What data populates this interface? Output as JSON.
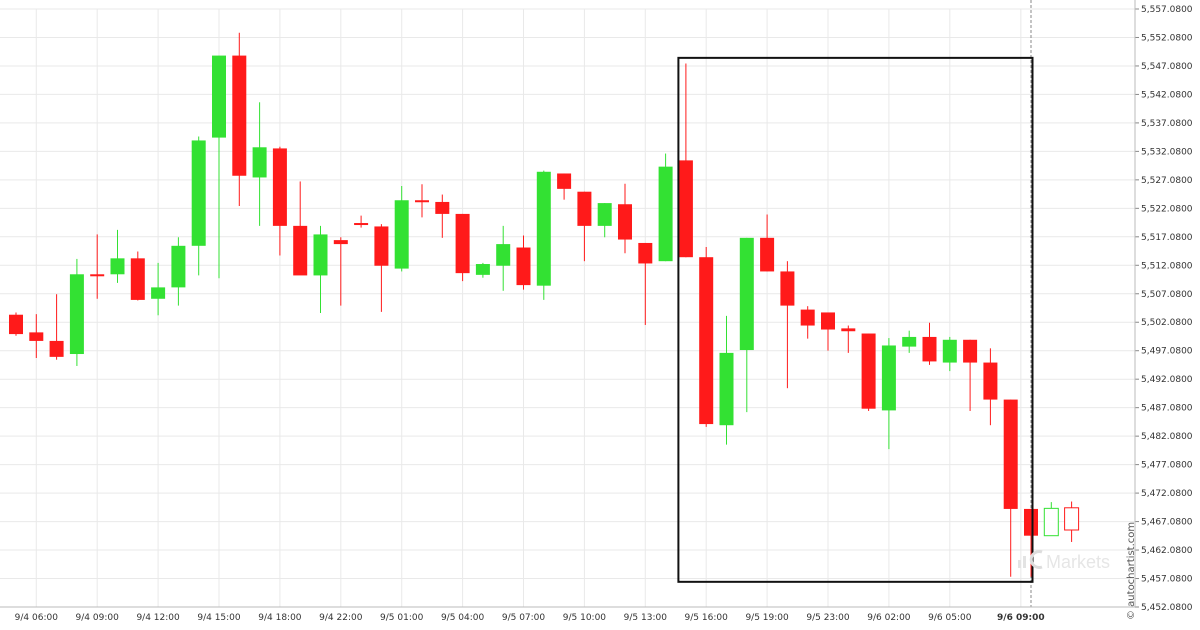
{
  "chart_data": {
    "type": "candlestick",
    "ylim": [
      5452.08,
      5557.08
    ],
    "ytick_step": 5,
    "ytick_format": "thousands_comma_4dp",
    "grid": true,
    "highlight_box": {
      "from_index": 33,
      "to_index": 50,
      "y_range": [
        5456.5,
        5548.5
      ]
    },
    "current_time_marker_index": 50,
    "x_ticks": [
      {
        "label": "9/4 06:00",
        "index": 1,
        "bold": false
      },
      {
        "label": "9/4 09:00",
        "index": 4,
        "bold": false
      },
      {
        "label": "9/4 12:00",
        "index": 7,
        "bold": false
      },
      {
        "label": "9/4 15:00",
        "index": 10,
        "bold": false
      },
      {
        "label": "9/4 18:00",
        "index": 13,
        "bold": false
      },
      {
        "label": "9/4 22:00",
        "index": 16,
        "bold": false
      },
      {
        "label": "9/5 01:00",
        "index": 19,
        "bold": false
      },
      {
        "label": "9/5 04:00",
        "index": 22,
        "bold": false
      },
      {
        "label": "9/5 07:00",
        "index": 25,
        "bold": false
      },
      {
        "label": "9/5 10:00",
        "index": 28,
        "bold": false
      },
      {
        "label": "9/5 13:00",
        "index": 31,
        "bold": false
      },
      {
        "label": "9/5 16:00",
        "index": 34,
        "bold": false
      },
      {
        "label": "9/5 19:00",
        "index": 37,
        "bold": false
      },
      {
        "label": "9/5 23:00",
        "index": 40,
        "bold": false
      },
      {
        "label": "9/6 02:00",
        "index": 43,
        "bold": false
      },
      {
        "label": "9/6 05:00",
        "index": 46,
        "bold": false
      },
      {
        "label": "9/6 09:00",
        "index": 49.5,
        "bold": true
      }
    ],
    "candles": [
      {
        "o": 5503.4,
        "h": 5503.8,
        "l": 5499.7,
        "c": 5500.0,
        "state": "bear"
      },
      {
        "o": 5500.3,
        "h": 5503.5,
        "l": 5495.8,
        "c": 5498.8,
        "state": "bear"
      },
      {
        "o": 5498.8,
        "h": 5507.0,
        "l": 5495.5,
        "c": 5496.0,
        "state": "bear"
      },
      {
        "o": 5496.5,
        "h": 5513.2,
        "l": 5494.4,
        "c": 5510.5,
        "state": "bull"
      },
      {
        "o": 5510.5,
        "h": 5517.5,
        "l": 5506.2,
        "c": 5510.5,
        "state": "bear"
      },
      {
        "o": 5510.5,
        "h": 5518.3,
        "l": 5509.0,
        "c": 5513.3,
        "state": "bull"
      },
      {
        "o": 5513.3,
        "h": 5514.5,
        "l": 5505.9,
        "c": 5506.0,
        "state": "bear"
      },
      {
        "o": 5506.2,
        "h": 5512.5,
        "l": 5503.3,
        "c": 5508.2,
        "state": "bull"
      },
      {
        "o": 5508.2,
        "h": 5517.0,
        "l": 5505.0,
        "c": 5515.5,
        "state": "bull"
      },
      {
        "o": 5515.5,
        "h": 5534.7,
        "l": 5510.3,
        "c": 5534.0,
        "state": "bull"
      },
      {
        "o": 5534.5,
        "h": 5548.9,
        "l": 5509.8,
        "c": 5548.9,
        "state": "bull"
      },
      {
        "o": 5548.9,
        "h": 5552.9,
        "l": 5522.5,
        "c": 5527.8,
        "state": "bear"
      },
      {
        "o": 5527.5,
        "h": 5540.7,
        "l": 5519.0,
        "c": 5532.8,
        "state": "bull"
      },
      {
        "o": 5532.6,
        "h": 5532.9,
        "l": 5513.8,
        "c": 5519.0,
        "state": "bear"
      },
      {
        "o": 5519.0,
        "h": 5526.8,
        "l": 5510.5,
        "c": 5510.3,
        "state": "bear"
      },
      {
        "o": 5510.3,
        "h": 5519.0,
        "l": 5503.7,
        "c": 5517.5,
        "state": "bull"
      },
      {
        "o": 5516.5,
        "h": 5517.0,
        "l": 5505.0,
        "c": 5515.8,
        "state": "bear"
      },
      {
        "o": 5519.5,
        "h": 5520.8,
        "l": 5518.7,
        "c": 5519.5,
        "state": "bear"
      },
      {
        "o": 5518.9,
        "h": 5519.3,
        "l": 5503.9,
        "c": 5512.0,
        "state": "bear"
      },
      {
        "o": 5511.5,
        "h": 5526.0,
        "l": 5511.0,
        "c": 5523.5,
        "state": "bull"
      },
      {
        "o": 5523.5,
        "h": 5526.3,
        "l": 5520.5,
        "c": 5523.5,
        "state": "bear"
      },
      {
        "o": 5523.2,
        "h": 5524.5,
        "l": 5516.9,
        "c": 5521.1,
        "state": "bear"
      },
      {
        "o": 5521.1,
        "h": 5521.1,
        "l": 5509.3,
        "c": 5510.7,
        "state": "bear"
      },
      {
        "o": 5510.4,
        "h": 5512.5,
        "l": 5509.9,
        "c": 5512.3,
        "state": "bull"
      },
      {
        "o": 5512.0,
        "h": 5519.0,
        "l": 5507.6,
        "c": 5515.8,
        "state": "bull"
      },
      {
        "o": 5515.2,
        "h": 5517.3,
        "l": 5507.8,
        "c": 5508.6,
        "state": "bear"
      },
      {
        "o": 5508.5,
        "h": 5528.7,
        "l": 5506.0,
        "c": 5528.5,
        "state": "bull"
      },
      {
        "o": 5528.2,
        "h": 5528.2,
        "l": 5523.6,
        "c": 5525.5,
        "state": "bear"
      },
      {
        "o": 5525.0,
        "h": 5525.0,
        "l": 5512.8,
        "c": 5519.0,
        "state": "bear"
      },
      {
        "o": 5519.0,
        "h": 5523.0,
        "l": 5517.0,
        "c": 5523.0,
        "state": "bull"
      },
      {
        "o": 5522.8,
        "h": 5526.4,
        "l": 5514.2,
        "c": 5516.6,
        "state": "bear"
      },
      {
        "o": 5516.0,
        "h": 5516.0,
        "l": 5501.6,
        "c": 5512.4,
        "state": "bear"
      },
      {
        "o": 5512.8,
        "h": 5531.7,
        "l": 5512.8,
        "c": 5529.4,
        "state": "bull"
      },
      {
        "o": 5530.5,
        "h": 5547.5,
        "l": 5513.5,
        "c": 5513.5,
        "state": "bear"
      },
      {
        "o": 5513.5,
        "h": 5515.3,
        "l": 5483.7,
        "c": 5484.2,
        "state": "bear"
      },
      {
        "o": 5484.0,
        "h": 5503.2,
        "l": 5480.6,
        "c": 5496.7,
        "state": "bull"
      },
      {
        "o": 5497.2,
        "h": 5516.9,
        "l": 5486.3,
        "c": 5516.9,
        "state": "bull"
      },
      {
        "o": 5516.9,
        "h": 5521.0,
        "l": 5511.0,
        "c": 5511.0,
        "state": "bear"
      },
      {
        "o": 5511.0,
        "h": 5512.8,
        "l": 5490.5,
        "c": 5505.0,
        "state": "bear"
      },
      {
        "o": 5504.3,
        "h": 5504.9,
        "l": 5499.2,
        "c": 5501.5,
        "state": "bear"
      },
      {
        "o": 5503.8,
        "h": 5503.8,
        "l": 5497.1,
        "c": 5500.8,
        "state": "bear"
      },
      {
        "o": 5501.0,
        "h": 5501.5,
        "l": 5496.7,
        "c": 5500.5,
        "state": "bear"
      },
      {
        "o": 5500.1,
        "h": 5500.1,
        "l": 5486.5,
        "c": 5486.9,
        "state": "bear"
      },
      {
        "o": 5486.6,
        "h": 5499.3,
        "l": 5479.8,
        "c": 5498.0,
        "state": "bull"
      },
      {
        "o": 5497.8,
        "h": 5500.6,
        "l": 5496.7,
        "c": 5499.5,
        "state": "bull"
      },
      {
        "o": 5499.5,
        "h": 5502.0,
        "l": 5494.6,
        "c": 5495.2,
        "state": "bear"
      },
      {
        "o": 5495.0,
        "h": 5499.5,
        "l": 5493.5,
        "c": 5499.0,
        "state": "bull"
      },
      {
        "o": 5499.0,
        "h": 5499.0,
        "l": 5486.5,
        "c": 5495.0,
        "state": "bear"
      },
      {
        "o": 5495.0,
        "h": 5497.5,
        "l": 5484.0,
        "c": 5488.5,
        "state": "bear"
      },
      {
        "o": 5488.5,
        "h": 5488.5,
        "l": 5457.4,
        "c": 5469.3,
        "state": "bear"
      },
      {
        "o": 5469.3,
        "h": 5469.3,
        "l": 5457.4,
        "c": 5464.6,
        "state": "bear"
      },
      {
        "o": 5464.6,
        "h": 5470.5,
        "l": 5464.6,
        "c": 5469.4,
        "state": "pending_bull"
      },
      {
        "o": 5469.5,
        "h": 5470.6,
        "l": 5463.5,
        "c": 5465.6,
        "state": "pending_bear"
      }
    ],
    "colors": {
      "bull": "#33e133",
      "bear": "#ff1a1a",
      "grid": "#e9e9e9",
      "box": "#111111",
      "marker": "#888888"
    }
  },
  "watermark": {
    "vertical_text": "© autochartist.com",
    "brand_text": "Markets"
  }
}
